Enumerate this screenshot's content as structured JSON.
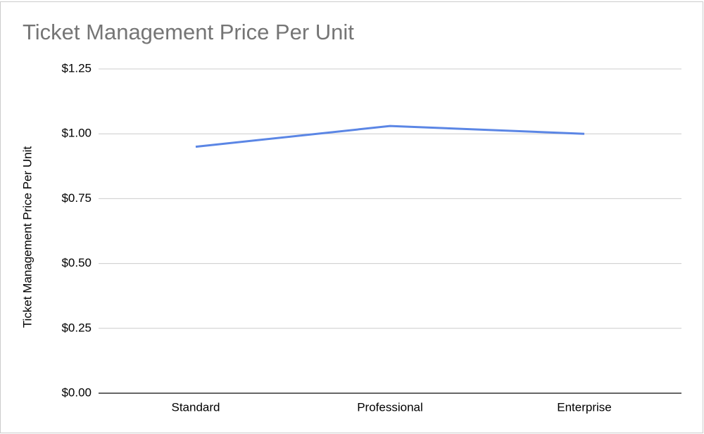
{
  "chart_data": {
    "type": "line",
    "title": "Ticket Management Price Per Unit",
    "y_label": "Ticket Management Price Per Unit",
    "categories": [
      "Standard",
      "Professional",
      "Enterprise"
    ],
    "series": [
      {
        "name": "Ticket Management Price Per Unit",
        "color": "#5b86e5",
        "values": [
          0.95,
          1.03,
          1.0
        ]
      }
    ],
    "ylim": [
      0,
      1.25
    ],
    "yticks": [
      {
        "value": 0,
        "label": "$0.00"
      },
      {
        "value": 0.25,
        "label": "$0.25"
      },
      {
        "value": 0.5,
        "label": "$0.50"
      },
      {
        "value": 0.75,
        "label": "$0.75"
      },
      {
        "value": 1,
        "label": "$1.00"
      },
      {
        "value": 1.25,
        "label": "$1.25"
      }
    ],
    "grid": true
  }
}
